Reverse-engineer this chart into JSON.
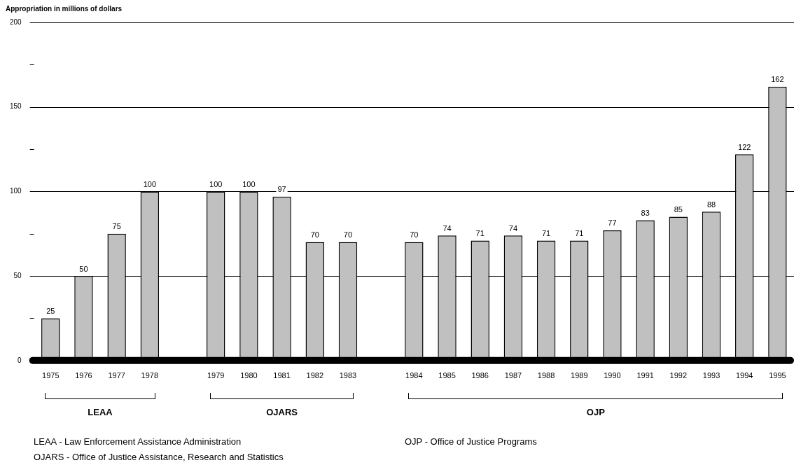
{
  "chart_data": {
    "type": "bar",
    "ylabel": "Appropriation in millions of dollars",
    "categories": [
      "1975",
      "1976",
      "1977",
      "1978",
      null,
      "1979",
      "1980",
      "1981",
      "1982",
      "1983",
      null,
      "1984",
      "1985",
      "1986",
      "1987",
      "1988",
      "1989",
      "1990",
      "1991",
      "1992",
      "1993",
      "1994",
      "1995"
    ],
    "values": [
      25,
      50,
      75,
      100,
      null,
      100,
      100,
      97,
      70,
      70,
      null,
      70,
      74,
      71,
      74,
      71,
      71,
      77,
      83,
      85,
      88,
      122,
      162
    ],
    "color": "#c0c0c0",
    "ylim": [
      0,
      200
    ],
    "yticks": [
      0,
      {
        "value": 25,
        "label": null
      },
      50,
      {
        "value": 75,
        "label": null
      },
      100,
      {
        "value": 125,
        "label": null
      },
      150,
      {
        "value": 175,
        "label": null
      },
      200
    ],
    "grid": "y",
    "data_labels": true,
    "annotations": [
      "LEAA",
      "OJARS",
      "OJP",
      "LEAA -  Law Enforcement Assistance Administration",
      "OJP -  Office of Justice Programs",
      "OJARS -  Office of Justice Assistance, Research and Statistics"
    ]
  }
}
